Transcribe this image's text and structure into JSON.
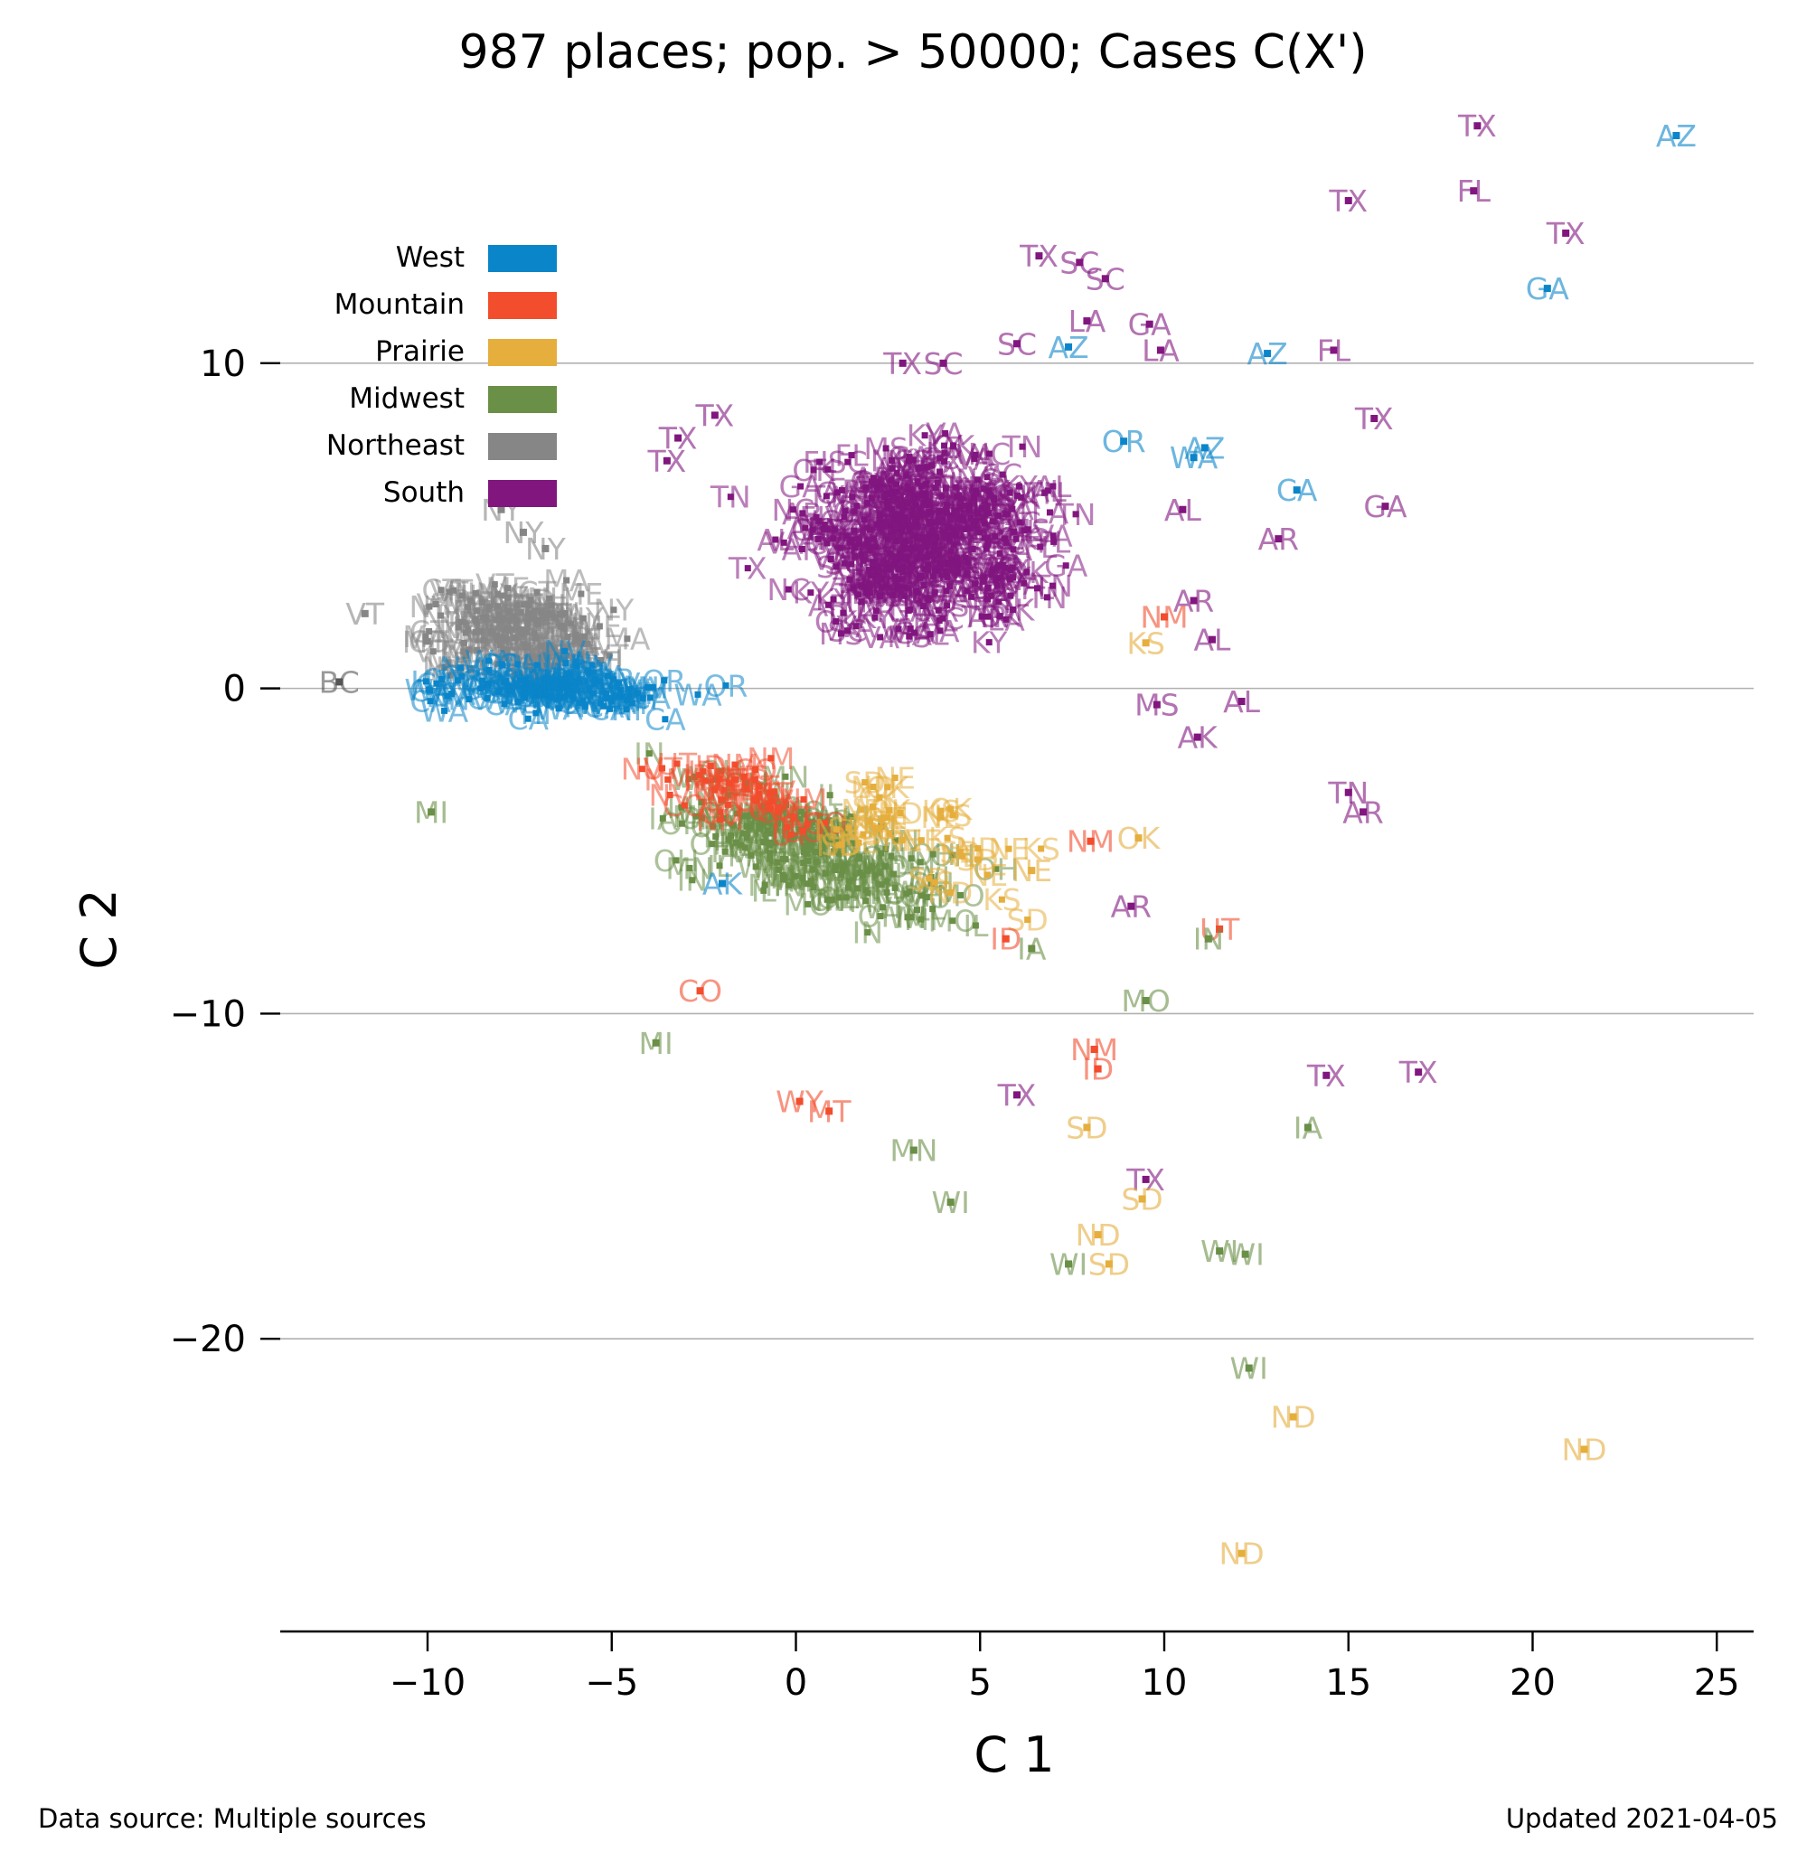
{
  "title": "987 places; pop. > 50000; Cases C(X')",
  "footer": {
    "source": "Data source: Multiple sources",
    "updated": "Updated 2021-04-05"
  },
  "chart_data": {
    "type": "scatter",
    "title": "987 places; pop. > 50000; Cases C(X')",
    "xlabel": "C 1",
    "ylabel": "C 2",
    "xlim": [
      -14,
      26
    ],
    "ylim": [
      -29,
      17
    ],
    "xticks": [
      -10,
      -5,
      0,
      5,
      10,
      15,
      20,
      25
    ],
    "yticks": [
      -20,
      -10,
      0,
      10
    ],
    "x_tick_labels": [
      "−10",
      "−5",
      "0",
      "5",
      "10",
      "15",
      "20",
      "25"
    ],
    "y_tick_labels": [
      "−20",
      "−10",
      "0",
      "10"
    ],
    "grid": "horizontal",
    "legend_position": "top-left",
    "regions": [
      {
        "name": "West",
        "color": "#0b85c9"
      },
      {
        "name": "Mountain",
        "color": "#f24d2d"
      },
      {
        "name": "Prairie",
        "color": "#e5ae3d"
      },
      {
        "name": "Midwest",
        "color": "#6a8f47"
      },
      {
        "name": "Northeast",
        "color": "#868686"
      },
      {
        "name": "South",
        "color": "#81167f"
      }
    ],
    "labeled_points": [
      {
        "label": "TX",
        "region": "South",
        "x": 18.5,
        "y": 17.3
      },
      {
        "label": "AZ",
        "region": "West",
        "x": 23.9,
        "y": 17.0
      },
      {
        "label": "FL",
        "region": "South",
        "x": 18.4,
        "y": 15.3
      },
      {
        "label": "TX",
        "region": "South",
        "x": 15.0,
        "y": 15.0
      },
      {
        "label": "TX",
        "region": "South",
        "x": 20.9,
        "y": 14.0
      },
      {
        "label": "GA",
        "region": "West",
        "x": 20.4,
        "y": 12.3
      },
      {
        "label": "TX",
        "region": "South",
        "x": 6.6,
        "y": 13.3
      },
      {
        "label": "SC",
        "region": "South",
        "x": 7.7,
        "y": 13.1
      },
      {
        "label": "SC",
        "region": "South",
        "x": 8.4,
        "y": 12.6
      },
      {
        "label": "LA",
        "region": "South",
        "x": 7.9,
        "y": 11.3
      },
      {
        "label": "GA",
        "region": "South",
        "x": 9.6,
        "y": 11.2
      },
      {
        "label": "SC",
        "region": "South",
        "x": 6.0,
        "y": 10.6
      },
      {
        "label": "AZ",
        "region": "West",
        "x": 7.4,
        "y": 10.5
      },
      {
        "label": "LA",
        "region": "South",
        "x": 9.9,
        "y": 10.4
      },
      {
        "label": "AZ",
        "region": "West",
        "x": 12.8,
        "y": 10.3
      },
      {
        "label": "FL",
        "region": "South",
        "x": 14.6,
        "y": 10.4
      },
      {
        "label": "TX",
        "region": "South",
        "x": 2.9,
        "y": 10.0
      },
      {
        "label": "SC",
        "region": "South",
        "x": 4.0,
        "y": 10.0
      },
      {
        "label": "TX",
        "region": "South",
        "x": -2.2,
        "y": 8.4
      },
      {
        "label": "TX",
        "region": "South",
        "x": -3.2,
        "y": 7.7
      },
      {
        "label": "TX",
        "region": "South",
        "x": -3.5,
        "y": 7.0
      },
      {
        "label": "TX",
        "region": "South",
        "x": 15.7,
        "y": 8.3
      },
      {
        "label": "OR",
        "region": "West",
        "x": 8.9,
        "y": 7.6
      },
      {
        "label": "AZ",
        "region": "West",
        "x": 11.1,
        "y": 7.4
      },
      {
        "label": "WA",
        "region": "West",
        "x": 10.8,
        "y": 7.1
      },
      {
        "label": "CA",
        "region": "West",
        "x": 13.6,
        "y": 6.1
      },
      {
        "label": "GA",
        "region": "South",
        "x": 16.0,
        "y": 5.6
      },
      {
        "label": "AL",
        "region": "South",
        "x": 10.5,
        "y": 5.5
      },
      {
        "label": "AR",
        "region": "South",
        "x": 13.1,
        "y": 4.6
      },
      {
        "label": "NY",
        "region": "Northeast",
        "x": -8.0,
        "y": 5.5
      },
      {
        "label": "NY",
        "region": "Northeast",
        "x": -7.4,
        "y": 4.8
      },
      {
        "label": "NY",
        "region": "Northeast",
        "x": -6.8,
        "y": 4.3
      },
      {
        "label": "VT",
        "region": "Northeast",
        "x": -11.7,
        "y": 2.3
      },
      {
        "label": "AR",
        "region": "South",
        "x": 10.8,
        "y": 2.7
      },
      {
        "label": "NM",
        "region": "Mountain",
        "x": 10.0,
        "y": 2.2
      },
      {
        "label": "AL",
        "region": "South",
        "x": 11.3,
        "y": 1.5
      },
      {
        "label": "KS",
        "region": "Prairie",
        "x": 9.5,
        "y": 1.4
      },
      {
        "label": "BC",
        "region": "Other",
        "x": -12.4,
        "y": 0.2
      },
      {
        "label": "MS",
        "region": "South",
        "x": 9.8,
        "y": -0.5
      },
      {
        "label": "AL",
        "region": "South",
        "x": 12.1,
        "y": -0.4
      },
      {
        "label": "AK",
        "region": "South",
        "x": 10.9,
        "y": -1.5
      },
      {
        "label": "TN",
        "region": "South",
        "x": 15.0,
        "y": -3.2
      },
      {
        "label": "AR",
        "region": "South",
        "x": 15.4,
        "y": -3.8
      },
      {
        "label": "MI",
        "region": "Midwest",
        "x": -9.9,
        "y": -3.8
      },
      {
        "label": "OK",
        "region": "Prairie",
        "x": 9.3,
        "y": -4.6
      },
      {
        "label": "NM",
        "region": "Mountain",
        "x": 8.0,
        "y": -4.7
      },
      {
        "label": "NE",
        "region": "Prairie",
        "x": 6.4,
        "y": -5.6
      },
      {
        "label": "AK",
        "region": "West",
        "x": -2.0,
        "y": -6.0
      },
      {
        "label": "AR",
        "region": "South",
        "x": 9.1,
        "y": -6.7
      },
      {
        "label": "UT",
        "region": "Mountain",
        "x": 11.5,
        "y": -7.4
      },
      {
        "label": "IN",
        "region": "Midwest",
        "x": 11.2,
        "y": -7.7
      },
      {
        "label": "ID",
        "region": "Mountain",
        "x": 5.7,
        "y": -7.7
      },
      {
        "label": "IA",
        "region": "Midwest",
        "x": 6.4,
        "y": -8.0
      },
      {
        "label": "CO",
        "region": "Mountain",
        "x": -2.6,
        "y": -9.3
      },
      {
        "label": "MO",
        "region": "Midwest",
        "x": 9.5,
        "y": -9.6
      },
      {
        "label": "MI",
        "region": "Midwest",
        "x": -3.8,
        "y": -10.9
      },
      {
        "label": "NM",
        "region": "Mountain",
        "x": 8.1,
        "y": -11.1
      },
      {
        "label": "ID",
        "region": "Mountain",
        "x": 8.2,
        "y": -11.7
      },
      {
        "label": "TX",
        "region": "South",
        "x": 6.0,
        "y": -12.5
      },
      {
        "label": "TX",
        "region": "South",
        "x": 14.4,
        "y": -11.9
      },
      {
        "label": "TX",
        "region": "South",
        "x": 16.9,
        "y": -11.8
      },
      {
        "label": "WY",
        "region": "Mountain",
        "x": 0.1,
        "y": -12.7
      },
      {
        "label": "MT",
        "region": "Mountain",
        "x": 0.9,
        "y": -13.0
      },
      {
        "label": "SD",
        "region": "Prairie",
        "x": 7.9,
        "y": -13.5
      },
      {
        "label": "IA",
        "region": "Midwest",
        "x": 13.9,
        "y": -13.5
      },
      {
        "label": "MN",
        "region": "Midwest",
        "x": 3.2,
        "y": -14.2
      },
      {
        "label": "TX",
        "region": "South",
        "x": 9.5,
        "y": -15.1
      },
      {
        "label": "WI",
        "region": "Midwest",
        "x": 4.2,
        "y": -15.8
      },
      {
        "label": "SD",
        "region": "Prairie",
        "x": 9.4,
        "y": -15.7
      },
      {
        "label": "ND",
        "region": "Prairie",
        "x": 8.2,
        "y": -16.8
      },
      {
        "label": "WI",
        "region": "Midwest",
        "x": 11.5,
        "y": -17.3
      },
      {
        "label": "WI",
        "region": "Midwest",
        "x": 12.2,
        "y": -17.4
      },
      {
        "label": "SD",
        "region": "Prairie",
        "x": 8.5,
        "y": -17.7
      },
      {
        "label": "WI",
        "region": "Midwest",
        "x": 7.4,
        "y": -17.7
      },
      {
        "label": "WI",
        "region": "Midwest",
        "x": 12.3,
        "y": -20.9
      },
      {
        "label": "ND",
        "region": "Prairie",
        "x": 13.5,
        "y": -22.4
      },
      {
        "label": "ND",
        "region": "Prairie",
        "x": 21.4,
        "y": -23.4
      },
      {
        "label": "ND",
        "region": "Prairie",
        "x": 12.1,
        "y": -26.6
      }
    ],
    "clusters": [
      {
        "region": "South",
        "cx": 3.5,
        "cy": 4.5,
        "rx": 5.5,
        "ry": 4.5,
        "n": 420,
        "labels": [
          "TX",
          "GA",
          "FL",
          "AL",
          "NC",
          "SC",
          "TN",
          "LA",
          "VA",
          "MS",
          "KY",
          "AR",
          "OK"
        ]
      },
      {
        "region": "Northeast",
        "cx": -7.5,
        "cy": 1.8,
        "rx": 4.0,
        "ry": 2.2,
        "n": 150,
        "labels": [
          "NY",
          "NJ",
          "PA",
          "MA",
          "CT",
          "RI",
          "VT",
          "NH",
          "ME",
          "MD"
        ]
      },
      {
        "region": "West",
        "cx": -6.5,
        "cy": 0.0,
        "rx": 5.5,
        "ry": 1.3,
        "n": 120,
        "labels": [
          "CA",
          "WA",
          "OR",
          "HI",
          "NV"
        ]
      },
      {
        "region": "Midwest",
        "cx": 0.5,
        "cy": -5.0,
        "rx": 6.0,
        "ry": 2.8,
        "n": 180,
        "labels": [
          "MI",
          "MN",
          "WI",
          "IL",
          "IN",
          "OH",
          "IA",
          "MO"
        ]
      },
      {
        "region": "Mountain",
        "cx": -1.5,
        "cy": -3.3,
        "rx": 4.5,
        "ry": 1.6,
        "n": 45,
        "labels": [
          "CO",
          "UT",
          "ID",
          "NM",
          "MT",
          "NV"
        ]
      },
      {
        "region": "Prairie",
        "cx": 3.5,
        "cy": -4.5,
        "rx": 4.5,
        "ry": 2.5,
        "n": 40,
        "labels": [
          "KS",
          "NE",
          "OK",
          "SD",
          "ND"
        ]
      }
    ],
    "legend": [
      "West",
      "Mountain",
      "Prairie",
      "Midwest",
      "Northeast",
      "South"
    ]
  }
}
